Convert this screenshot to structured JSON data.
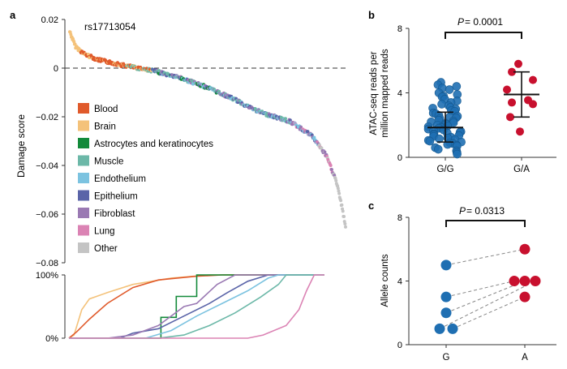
{
  "panels": {
    "a": {
      "letter": "a",
      "annotation": "rs17713054",
      "ylabel": "Damage score"
    },
    "b": {
      "letter": "b",
      "ylabel_line1": "ATAC-seq reads per",
      "ylabel_line2": "million mapped reads",
      "pvalue_prefix": "P",
      "pvalue_text": " = 0.0001"
    },
    "c": {
      "letter": "c",
      "ylabel": "Allele counts",
      "pvalue_prefix": "P",
      "pvalue_text": " = 0.0313"
    }
  },
  "colors": {
    "Blood": "#e05a2b",
    "Brain": "#f4c27a",
    "Astrocytes and keratinocytes": "#138a3a",
    "Muscle": "#6cb8a8",
    "Endothelium": "#7cc3e0",
    "Epithelium": "#5a64a8",
    "Fibroblast": "#9a79b3",
    "Lung": "#db83b4",
    "Other": "#c4c4c4"
  },
  "chart_data": [
    {
      "type": "scatter",
      "panel": "a-top",
      "ylabel": "Damage score",
      "ylim": [
        -0.08,
        0.02
      ],
      "yticks": [
        "0.02",
        "0",
        "−0.02",
        "−0.04",
        "−0.06",
        "−0.08"
      ],
      "yticks_values": [
        0.02,
        0,
        -0.02,
        -0.04,
        -0.06,
        -0.08
      ],
      "reference_line": 0,
      "curve_points": [
        [
          0,
          0.015
        ],
        [
          0.02,
          0.009
        ],
        [
          0.05,
          0.006
        ],
        [
          0.1,
          0.0035
        ],
        [
          0.2,
          0.001
        ],
        [
          0.3,
          -0.001
        ],
        [
          0.4,
          -0.004
        ],
        [
          0.5,
          -0.008
        ],
        [
          0.6,
          -0.013
        ],
        [
          0.65,
          -0.016
        ],
        [
          0.7,
          -0.0185
        ],
        [
          0.8,
          -0.022
        ],
        [
          0.88,
          -0.028
        ],
        [
          0.93,
          -0.036
        ],
        [
          0.965,
          -0.046
        ],
        [
          0.985,
          -0.056
        ],
        [
          1.0,
          -0.065
        ]
      ],
      "legend": [
        "Blood",
        "Brain",
        "Astrocytes and keratinocytes",
        "Muscle",
        "Endothelium",
        "Epithelium",
        "Fibroblast",
        "Lung",
        "Other"
      ],
      "legend_position": "left"
    },
    {
      "type": "line",
      "panel": "a-bottom",
      "yticks": [
        "100%",
        "0%"
      ],
      "ylim": [
        0,
        100
      ],
      "series": [
        {
          "name": "Brain",
          "points": [
            [
              0,
              0
            ],
            [
              0.02,
              5
            ],
            [
              0.05,
              45
            ],
            [
              0.08,
              62
            ],
            [
              0.15,
              72
            ],
            [
              0.25,
              85
            ],
            [
              0.4,
              95
            ],
            [
              0.55,
              100
            ],
            [
              1,
              100
            ]
          ]
        },
        {
          "name": "Blood",
          "points": [
            [
              0,
              0
            ],
            [
              0.03,
              10
            ],
            [
              0.08,
              30
            ],
            [
              0.15,
              55
            ],
            [
              0.25,
              80
            ],
            [
              0.35,
              92
            ],
            [
              0.5,
              98
            ],
            [
              0.6,
              100
            ],
            [
              1,
              100
            ]
          ]
        },
        {
          "name": "Astrocytes and keratinocytes",
          "points": [
            [
              0,
              0
            ],
            [
              0.36,
              0
            ],
            [
              0.36,
              33
            ],
            [
              0.42,
              33
            ],
            [
              0.42,
              66
            ],
            [
              0.5,
              66
            ],
            [
              0.5,
              100
            ],
            [
              1,
              100
            ]
          ]
        },
        {
          "name": "Epithelium",
          "points": [
            [
              0,
              0
            ],
            [
              0.2,
              0
            ],
            [
              0.25,
              8
            ],
            [
              0.35,
              15
            ],
            [
              0.45,
              35
            ],
            [
              0.55,
              55
            ],
            [
              0.62,
              72
            ],
            [
              0.7,
              90
            ],
            [
              0.78,
              100
            ],
            [
              1,
              100
            ]
          ]
        },
        {
          "name": "Fibroblast",
          "points": [
            [
              0,
              0
            ],
            [
              0.15,
              0
            ],
            [
              0.25,
              5
            ],
            [
              0.35,
              20
            ],
            [
              0.45,
              50
            ],
            [
              0.5,
              55
            ],
            [
              0.58,
              85
            ],
            [
              0.65,
              100
            ],
            [
              1,
              100
            ]
          ]
        },
        {
          "name": "Endothelium",
          "points": [
            [
              0,
              0
            ],
            [
              0.3,
              0
            ],
            [
              0.4,
              12
            ],
            [
              0.5,
              35
            ],
            [
              0.6,
              55
            ],
            [
              0.7,
              75
            ],
            [
              0.78,
              95
            ],
            [
              0.82,
              100
            ],
            [
              1,
              100
            ]
          ]
        },
        {
          "name": "Muscle",
          "points": [
            [
              0,
              0
            ],
            [
              0.35,
              0
            ],
            [
              0.45,
              5
            ],
            [
              0.55,
              20
            ],
            [
              0.65,
              40
            ],
            [
              0.75,
              65
            ],
            [
              0.82,
              85
            ],
            [
              0.85,
              100
            ],
            [
              1,
              100
            ]
          ]
        },
        {
          "name": "Lung",
          "points": [
            [
              0,
              0
            ],
            [
              0.7,
              0
            ],
            [
              0.76,
              5
            ],
            [
              0.85,
              20
            ],
            [
              0.9,
              45
            ],
            [
              0.93,
              75
            ],
            [
              0.96,
              100
            ],
            [
              1,
              100
            ]
          ]
        }
      ]
    },
    {
      "type": "scatter",
      "panel": "b",
      "categories": [
        "G/G",
        "G/A"
      ],
      "ylabel": "ATAC-seq reads per million mapped reads",
      "ylim": [
        0,
        8
      ],
      "yticks": [
        "0",
        "4",
        "8"
      ],
      "yticks_values": [
        0,
        4,
        8
      ],
      "pvalue": "P = 0.0001",
      "series": [
        {
          "name": "G/G",
          "mean": 1.85,
          "sd_low": 0.95,
          "sd_high": 2.8,
          "values": [
            4.65,
            4.5,
            4.4,
            4.3,
            4.2,
            4.0,
            3.9,
            3.8,
            3.75,
            3.6,
            3.5,
            3.4,
            3.3,
            3.2,
            3.1,
            3.05,
            3.0,
            2.9,
            2.85,
            2.75,
            2.7,
            2.6,
            2.55,
            2.5,
            2.45,
            2.4,
            2.3,
            2.25,
            2.2,
            2.15,
            2.1,
            2.05,
            2.0,
            1.95,
            1.9,
            1.85,
            1.8,
            1.75,
            1.7,
            1.65,
            1.6,
            1.55,
            1.5,
            1.45,
            1.4,
            1.35,
            1.3,
            1.25,
            1.2,
            1.15,
            1.1,
            1.05,
            1.0,
            0.95,
            0.9,
            0.85,
            0.8,
            0.75,
            0.7,
            0.6,
            0.5,
            0.4,
            0.3,
            0.2
          ]
        },
        {
          "name": "G/A",
          "mean": 3.9,
          "sd_low": 2.5,
          "sd_high": 5.3,
          "values": [
            5.8,
            5.3,
            4.8,
            4.2,
            3.55,
            3.4,
            3.3,
            2.5,
            1.6
          ]
        }
      ]
    },
    {
      "type": "scatter",
      "panel": "c",
      "categories": [
        "G",
        "A"
      ],
      "ylabel": "Allele counts",
      "ylim": [
        0,
        8
      ],
      "yticks": [
        "0",
        "4",
        "8"
      ],
      "yticks_values": [
        0,
        4,
        8
      ],
      "pvalue": "P = 0.0313",
      "pairs": [
        [
          5,
          6
        ],
        [
          3,
          4
        ],
        [
          2,
          4
        ],
        [
          1,
          4
        ],
        [
          1,
          3
        ]
      ]
    }
  ]
}
